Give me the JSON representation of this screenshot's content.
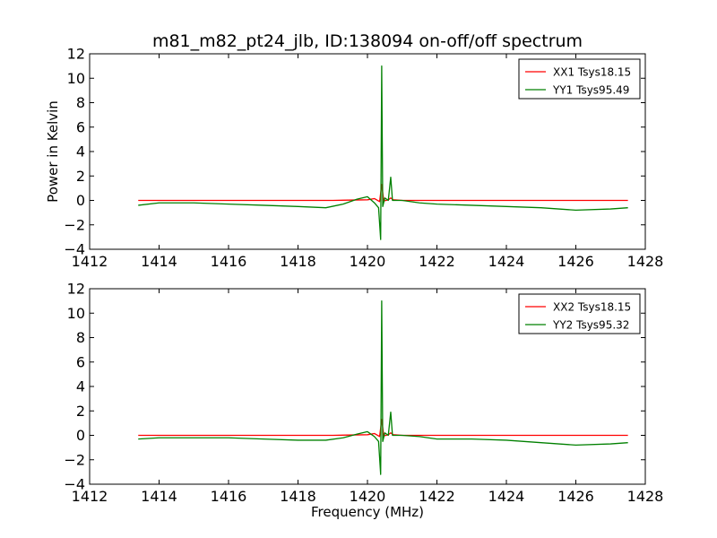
{
  "chart_data": [
    {
      "type": "line",
      "title": "m81_m82_pt24_jlb, ID:138094 on-off/off spectrum",
      "xlabel": "",
      "ylabel": "Power in Kelvin",
      "xlim": [
        1412,
        1428
      ],
      "ylim": [
        -4,
        12
      ],
      "xticks": [
        "1412",
        "1414",
        "1416",
        "1418",
        "1420",
        "1422",
        "1424",
        "1426",
        "1428"
      ],
      "yticks": [
        "-4",
        "-2",
        "0",
        "2",
        "4",
        "6",
        "8",
        "10",
        "12"
      ],
      "grid": false,
      "legend_position": "top-right",
      "series": [
        {
          "name": "XX1 Tsys18.15",
          "color": "#ff0000",
          "x": [
            1413.4,
            1416,
            1419,
            1420.0,
            1420.2,
            1420.35,
            1420.41,
            1420.47,
            1420.6,
            1420.67,
            1420.74,
            1421,
            1424,
            1427.5
          ],
          "y": [
            0.0,
            0.0,
            0.0,
            0.05,
            0.15,
            -0.1,
            1.3,
            -0.05,
            0.05,
            0.2,
            0.05,
            0.0,
            0.0,
            0.0
          ]
        },
        {
          "name": "YY1 Tsys95.49",
          "color": "#008000",
          "x": [
            1413.4,
            1414.0,
            1415.0,
            1416.0,
            1417.0,
            1418.0,
            1418.8,
            1419.3,
            1419.7,
            1420.0,
            1420.2,
            1420.32,
            1420.38,
            1420.41,
            1420.44,
            1420.5,
            1420.6,
            1420.67,
            1420.72,
            1420.8,
            1421.0,
            1421.5,
            1422.0,
            1423.0,
            1424.0,
            1425.0,
            1426.0,
            1427.0,
            1427.5
          ],
          "y": [
            -0.4,
            -0.2,
            -0.2,
            -0.3,
            -0.4,
            -0.5,
            -0.6,
            -0.3,
            0.1,
            0.3,
            -0.2,
            -0.6,
            -3.2,
            11.0,
            -0.5,
            0.2,
            0.0,
            1.9,
            0.0,
            0.0,
            0.0,
            -0.2,
            -0.3,
            -0.4,
            -0.5,
            -0.6,
            -0.8,
            -0.7,
            -0.6
          ]
        }
      ]
    },
    {
      "type": "line",
      "title": "",
      "xlabel": "Frequency (MHz)",
      "ylabel": "",
      "xlim": [
        1412,
        1428
      ],
      "ylim": [
        -4,
        12
      ],
      "xticks": [
        "1412",
        "1414",
        "1416",
        "1418",
        "1420",
        "1422",
        "1424",
        "1426",
        "1428"
      ],
      "yticks": [
        "-4",
        "-2",
        "0",
        "2",
        "4",
        "6",
        "8",
        "10",
        "12"
      ],
      "grid": false,
      "legend_position": "top-right",
      "series": [
        {
          "name": "XX2 Tsys18.15",
          "color": "#ff0000",
          "x": [
            1413.4,
            1416,
            1419,
            1420.0,
            1420.2,
            1420.35,
            1420.41,
            1420.47,
            1420.6,
            1420.67,
            1420.74,
            1421,
            1424,
            1427.5
          ],
          "y": [
            0.0,
            0.0,
            0.0,
            0.05,
            0.15,
            -0.1,
            1.3,
            -0.05,
            0.05,
            0.2,
            0.05,
            0.0,
            0.0,
            0.0
          ]
        },
        {
          "name": "YY2 Tsys95.32",
          "color": "#008000",
          "x": [
            1413.4,
            1414.0,
            1415.0,
            1416.0,
            1417.0,
            1418.0,
            1418.8,
            1419.3,
            1419.7,
            1420.0,
            1420.2,
            1420.32,
            1420.38,
            1420.41,
            1420.44,
            1420.5,
            1420.6,
            1420.67,
            1420.72,
            1420.8,
            1421.0,
            1421.5,
            1422.0,
            1423.0,
            1424.0,
            1425.0,
            1426.0,
            1427.0,
            1427.5
          ],
          "y": [
            -0.3,
            -0.2,
            -0.2,
            -0.2,
            -0.3,
            -0.4,
            -0.4,
            -0.2,
            0.1,
            0.3,
            -0.1,
            -0.5,
            -3.2,
            11.0,
            -0.5,
            0.2,
            0.0,
            1.9,
            0.0,
            0.0,
            0.0,
            -0.1,
            -0.3,
            -0.3,
            -0.4,
            -0.6,
            -0.8,
            -0.7,
            -0.6
          ]
        }
      ]
    }
  ]
}
